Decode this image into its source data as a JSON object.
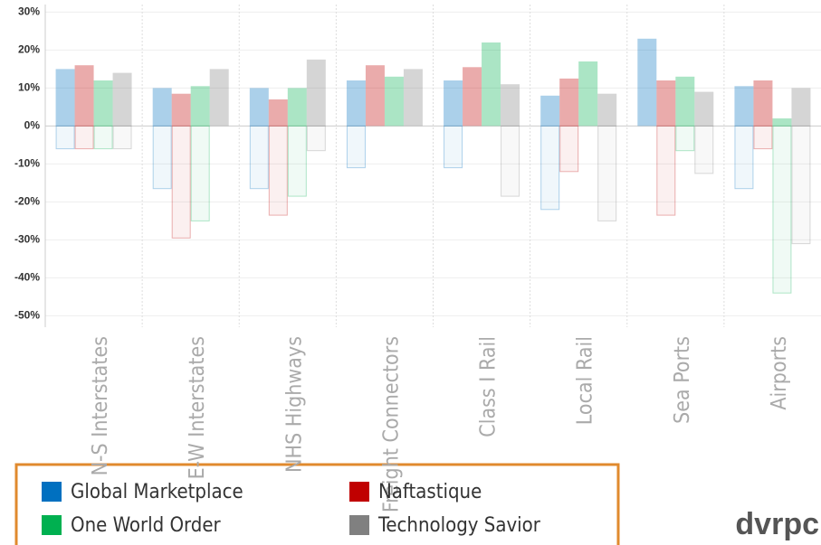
{
  "chart_data": {
    "type": "bar",
    "categories": [
      "N-S Interstates",
      "E-W Interstates",
      "NHS Highways",
      "Freight Connectors",
      "Class I Rail",
      "Local Rail",
      "Sea Ports",
      "Airports"
    ],
    "series": [
      {
        "name": "Global Marketplace",
        "color": "#0070c0",
        "values": [
          15,
          10,
          10,
          12,
          12,
          8,
          23,
          10.5
        ],
        "negative_values": [
          -6,
          -16.5,
          -16.5,
          -11,
          -11,
          -22,
          null,
          -16.5
        ]
      },
      {
        "name": "Naftastique",
        "color": "#c00000",
        "values": [
          16,
          8.5,
          7,
          16,
          15.5,
          12.5,
          12,
          12
        ],
        "negative_values": [
          -6,
          -29.5,
          -23.5,
          null,
          null,
          -12,
          -23.5,
          -6
        ]
      },
      {
        "name": "One World Order",
        "color": "#00b050",
        "values": [
          12,
          10.5,
          10,
          13,
          22,
          17,
          13,
          2
        ],
        "negative_values": [
          -6,
          -25,
          -18.5,
          null,
          null,
          null,
          -6.5,
          -44
        ]
      },
      {
        "name": "Technology Savior",
        "color": "#808080",
        "values": [
          14,
          15,
          17.5,
          15,
          11,
          8.5,
          9,
          10
        ],
        "negative_values": [
          -6,
          null,
          -6.5,
          null,
          -18.5,
          -25,
          -12.5,
          -31
        ]
      }
    ],
    "ylim": [
      -53,
      32
    ],
    "yticks": [
      {
        "value": 30,
        "label": "30%"
      },
      {
        "value": 20,
        "label": "20%"
      },
      {
        "value": 10,
        "label": "10%"
      },
      {
        "value": 0,
        "label": "0%"
      },
      {
        "value": -10,
        "label": "-10%"
      },
      {
        "value": -20,
        "label": "-20%"
      },
      {
        "value": -30,
        "label": "-30%"
      },
      {
        "value": -40,
        "label": "-40%"
      },
      {
        "value": -50,
        "label": "-50%"
      }
    ],
    "grid": true,
    "logo": "dvrpc"
  }
}
